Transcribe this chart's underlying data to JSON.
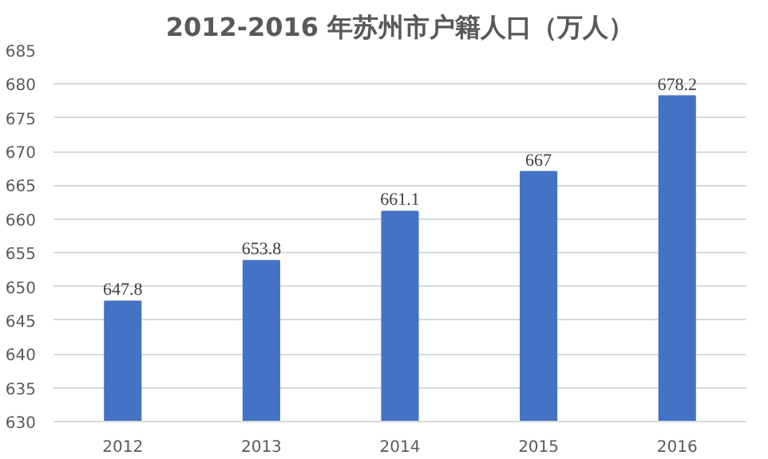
{
  "chart_data": {
    "type": "bar",
    "title": "2012-2016 年苏州市户籍人口（万人）",
    "categories": [
      "2012",
      "2013",
      "2014",
      "2015",
      "2016"
    ],
    "values": [
      647.8,
      653.8,
      661.1,
      667,
      678.2
    ],
    "color": "#4472c4",
    "ylim": [
      630,
      685
    ],
    "yticks": [
      630,
      635,
      640,
      645,
      650,
      655,
      660,
      665,
      670,
      675,
      680,
      685
    ],
    "grid": "y",
    "data_labels": true
  }
}
